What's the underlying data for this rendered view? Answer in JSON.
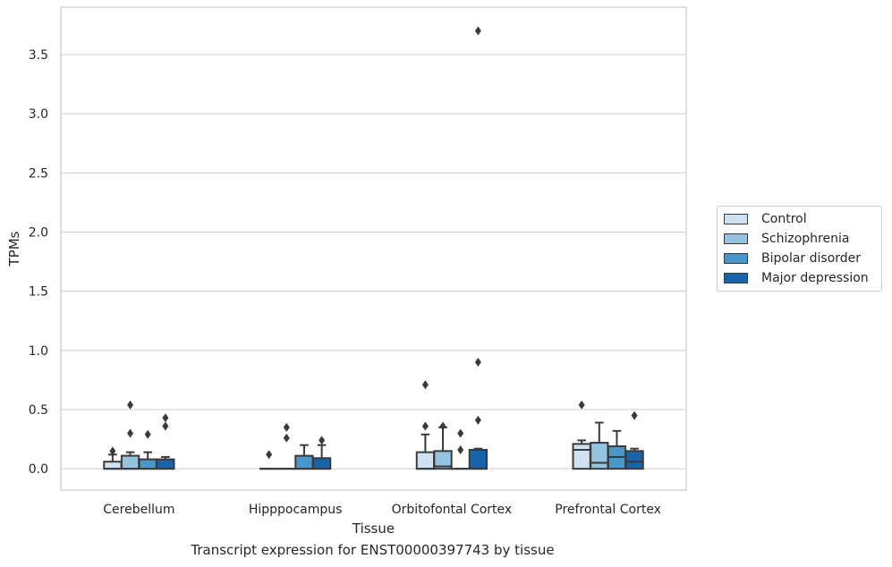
{
  "caption": "Transcript expression for ENST00000397743 by tissue",
  "chart_data": {
    "type": "box",
    "xlabel": "Tissue",
    "ylabel": "TPMs",
    "ylim": [
      -0.18,
      3.9
    ],
    "yticks": [
      "0.0",
      "0.5",
      "1.0",
      "1.5",
      "2.0",
      "2.5",
      "3.0",
      "3.5"
    ],
    "grid": "horizontal",
    "legend_position": "right",
    "categories": [
      "Cerebellum",
      "Hipppocampus",
      "Orbitofontal Cortex",
      "Prefrontal Cortex"
    ],
    "series": [
      {
        "name": "Control",
        "color": "#d0e1f2",
        "boxes": [
          {
            "q1": 0.0,
            "median": 0.0,
            "q3": 0.06,
            "wlow": 0.0,
            "whigh": 0.12,
            "outliers": [
              0.15
            ]
          },
          {
            "q1": 0.0,
            "median": 0.0,
            "q3": 0.0,
            "wlow": 0.0,
            "whigh": 0.0,
            "outliers": [
              0.12
            ]
          },
          {
            "q1": 0.0,
            "median": 0.0,
            "q3": 0.14,
            "wlow": 0.0,
            "whigh": 0.29,
            "outliers": [
              0.36,
              0.71
            ]
          },
          {
            "q1": 0.0,
            "median": 0.16,
            "q3": 0.21,
            "wlow": 0.0,
            "whigh": 0.24,
            "outliers": [
              0.54
            ]
          }
        ]
      },
      {
        "name": "Schizophrenia",
        "color": "#94c4df",
        "boxes": [
          {
            "q1": 0.0,
            "median": 0.0,
            "q3": 0.11,
            "wlow": 0.0,
            "whigh": 0.14,
            "outliers": [
              0.3,
              0.54
            ]
          },
          {
            "q1": 0.0,
            "median": 0.0,
            "q3": 0.0,
            "wlow": 0.0,
            "whigh": 0.0,
            "outliers": [
              0.26,
              0.35
            ]
          },
          {
            "q1": 0.0,
            "median": 0.02,
            "q3": 0.15,
            "wlow": 0.0,
            "whigh": 0.35,
            "outliers": [
              0.36
            ]
          },
          {
            "q1": 0.0,
            "median": 0.05,
            "q3": 0.22,
            "wlow": 0.0,
            "whigh": 0.39,
            "outliers": []
          }
        ]
      },
      {
        "name": "Bipolar disorder",
        "color": "#4a98c9",
        "boxes": [
          {
            "q1": 0.0,
            "median": 0.0,
            "q3": 0.08,
            "wlow": 0.0,
            "whigh": 0.14,
            "outliers": [
              0.29
            ]
          },
          {
            "q1": 0.0,
            "median": 0.0,
            "q3": 0.11,
            "wlow": 0.0,
            "whigh": 0.2,
            "outliers": []
          },
          {
            "q1": 0.0,
            "median": 0.0,
            "q3": 0.0,
            "wlow": 0.0,
            "whigh": 0.0,
            "outliers": [
              0.16,
              0.3
            ]
          },
          {
            "q1": 0.0,
            "median": 0.1,
            "q3": 0.19,
            "wlow": 0.0,
            "whigh": 0.32,
            "outliers": []
          }
        ]
      },
      {
        "name": "Major depression",
        "color": "#1764ab",
        "boxes": [
          {
            "q1": 0.0,
            "median": 0.0,
            "q3": 0.08,
            "wlow": 0.0,
            "whigh": 0.1,
            "outliers": [
              0.36,
              0.43
            ]
          },
          {
            "q1": 0.0,
            "median": 0.0,
            "q3": 0.09,
            "wlow": 0.0,
            "whigh": 0.2,
            "outliers": [
              0.24
            ]
          },
          {
            "q1": 0.0,
            "median": 0.0,
            "q3": 0.16,
            "wlow": 0.0,
            "whigh": 0.17,
            "outliers": [
              0.41,
              0.9,
              3.7
            ]
          },
          {
            "q1": 0.0,
            "median": 0.06,
            "q3": 0.15,
            "wlow": 0.0,
            "whigh": 0.17,
            "outliers": [
              0.45
            ]
          }
        ]
      }
    ]
  }
}
